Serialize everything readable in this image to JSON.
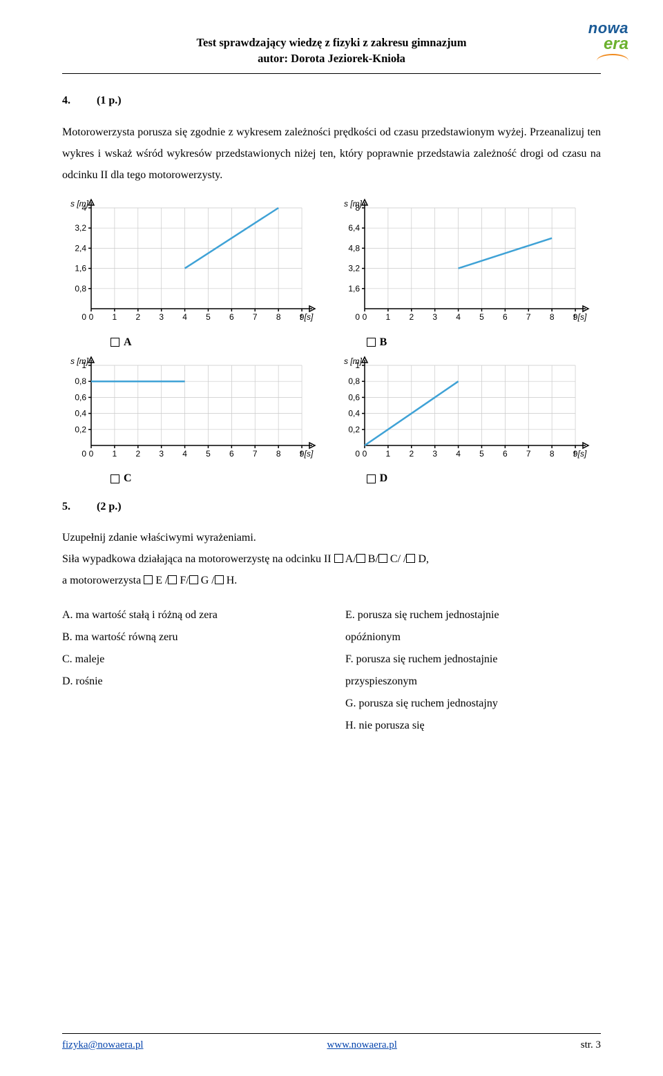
{
  "header": {
    "title_line1": "Test sprawdzający wiedzę z fizyki z zakresu gimnazjum",
    "title_line2": "autor: Dorota Jeziorek-Knioła"
  },
  "logo": {
    "line1": "nowa",
    "line2": "era"
  },
  "q4": {
    "number": "4.",
    "points": "(1 p.)",
    "para1": "Motorowerzysta porusza się zgodnie z wykresem zależności prędkości od czasu przedstawionym wyżej. Przeanalizuj ten wykres i wskaż wśród wykresów przedstawionych niżej ten, który poprawnie przedstawia zależność drogi od czasu na odcinku II dla tego motorowerzysty."
  },
  "chart_common": {
    "xaxis": "t [s]",
    "yaxis": "s [m]",
    "xticks": [
      0,
      1,
      2,
      3,
      4,
      5,
      6,
      7,
      8,
      9
    ],
    "grid_color": "#c9c9c9",
    "line_color": "#3fa2d6",
    "axis_color": "#000000",
    "bg": "#ffffff"
  },
  "chartA": {
    "label": "A",
    "yticks": [
      0,
      0.8,
      1.6,
      2.4,
      3.2,
      4
    ],
    "yticklabels": [
      "0",
      "0,8",
      "1,6",
      "2,4",
      "3,2",
      "4"
    ],
    "line": [
      [
        4,
        1.6
      ],
      [
        8,
        4
      ]
    ]
  },
  "chartB": {
    "label": "B",
    "yticks": [
      0,
      1.6,
      3.2,
      4.8,
      6.4,
      8
    ],
    "yticklabels": [
      "0",
      "1,6",
      "3,2",
      "4,8",
      "6,4",
      "8"
    ],
    "line": [
      [
        4,
        3.2
      ],
      [
        8,
        5.6
      ]
    ]
  },
  "chartC": {
    "label": "C",
    "yticks": [
      0,
      0.2,
      0.4,
      0.6,
      0.8,
      1
    ],
    "yticklabels": [
      "0",
      "0,2",
      "0,4",
      "0,6",
      "0,8",
      "1"
    ],
    "line": [
      [
        0,
        0.8
      ],
      [
        4,
        0.8
      ]
    ]
  },
  "chartD": {
    "label": "D",
    "yticks": [
      0,
      0.2,
      0.4,
      0.6,
      0.8,
      1
    ],
    "yticklabels": [
      "0",
      "0,2",
      "0,4",
      "0,6",
      "0,8",
      "1"
    ],
    "line": [
      [
        0,
        0
      ],
      [
        4,
        0.8
      ]
    ]
  },
  "q5": {
    "number": "5.",
    "points": "(2 p.)",
    "line1": "Uzupełnij zdanie właściwymi wyrażeniami.",
    "line2_a": "Siła wypadkowa działająca na motorowerzystę na odcinku II ",
    "line2_parts": [
      " A/",
      " B/",
      " C/ /",
      " D,"
    ],
    "line3_a": "a motorowerzysta ",
    "line3_parts": [
      " E /",
      " F/",
      " G /",
      " H."
    ]
  },
  "answers_left": {
    "A": "A. ma wartość stałą i różną od zera",
    "B": "B.  ma wartość równą zeru",
    "C": "C. maleje",
    "D": "D. rośnie"
  },
  "answers_right": {
    "E1": "E. porusza się ruchem jednostajnie",
    "E2": "opóźnionym",
    "F1": "F. porusza się ruchem jednostajnie",
    "F2": "przyspieszonym",
    "G": "G. porusza się ruchem jednostajny",
    "H": "H. nie porusza się"
  },
  "footer": {
    "email": "fizyka@nowaera.pl",
    "url": "www.nowaera.pl",
    "page": "str. 3"
  }
}
